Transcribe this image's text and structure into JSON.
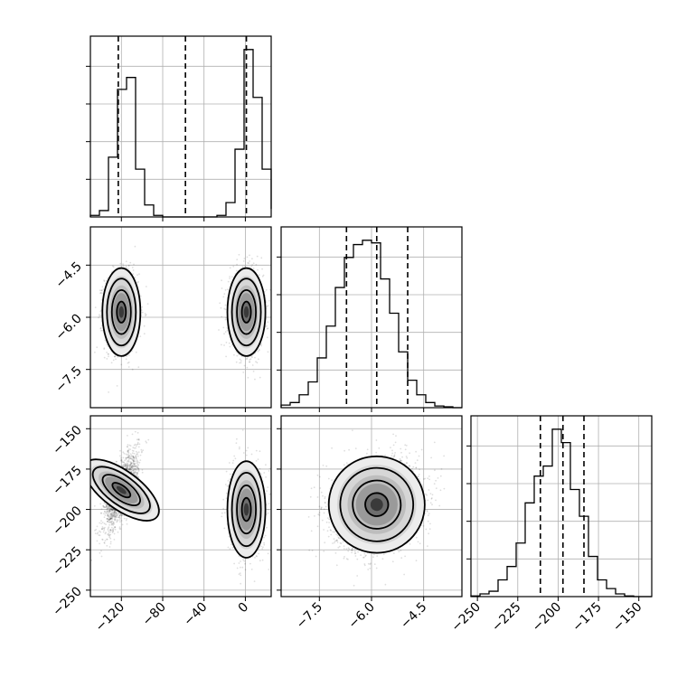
{
  "chart_data": {
    "type": "corner",
    "parameters": [
      {
        "ticks": [
          -120,
          -80,
          -40,
          0
        ],
        "tick_labels": [
          "−120",
          "−80",
          "−40",
          "0"
        ]
      },
      {
        "ticks": [
          -7.5,
          -6.0,
          -4.5
        ],
        "tick_labels": [
          "−7.5",
          "−6.0",
          "−4.5"
        ]
      },
      {
        "ticks": [
          -250,
          -225,
          -200,
          -175,
          -150
        ],
        "tick_labels": [
          "−250",
          "−225",
          "−200",
          "−175",
          "−150"
        ]
      }
    ],
    "ranges": [
      [
        -150,
        25
      ],
      [
        -8.6,
        -3.4
      ],
      [
        -254,
        -142
      ]
    ],
    "grid": true,
    "histograms": [
      {
        "bins": [
          -150,
          -141.25,
          -132.5,
          -123.75,
          -115,
          -106.25,
          -97.5,
          -88.75,
          -80,
          -71.25,
          -62.5,
          -53.75,
          -45,
          -36.25,
          -27.5,
          -18.75,
          -10,
          -1.25,
          7.5,
          16.25,
          25
        ],
        "counts": [
          2,
          8,
          75,
          160,
          175,
          60,
          15,
          2,
          0,
          0,
          0,
          0,
          0,
          0,
          2,
          18,
          85,
          210,
          150,
          60,
          10
        ],
        "quantiles": [
          -123,
          -58,
          1
        ]
      },
      {
        "bins": [
          -8.6,
          -8.34,
          -8.08,
          -7.82,
          -7.56,
          -7.3,
          -7.04,
          -6.78,
          -6.52,
          -6.26,
          -6.0,
          -5.74,
          -5.48,
          -5.22,
          -4.96,
          -4.7,
          -4.44,
          -4.18,
          -3.92,
          -3.66,
          -3.4
        ],
        "counts": [
          3,
          6,
          15,
          30,
          58,
          95,
          140,
          175,
          190,
          195,
          192,
          150,
          110,
          65,
          32,
          15,
          6,
          2,
          1,
          0
        ],
        "quantiles": [
          -6.72,
          -5.85,
          -4.96
        ]
      },
      {
        "bins": [
          -254,
          -248.4,
          -242.8,
          -237.2,
          -231.6,
          -226,
          -220.4,
          -214.8,
          -209.2,
          -203.6,
          -198,
          -192.4,
          -186.8,
          -181.2,
          -175.6,
          -170,
          -164.4,
          -158.8,
          -153.2,
          -147.6,
          -142
        ],
        "counts": [
          1,
          4,
          8,
          25,
          45,
          80,
          140,
          180,
          195,
          250,
          230,
          160,
          120,
          60,
          25,
          12,
          4,
          1,
          0,
          0
        ],
        "quantiles": [
          -211,
          -197,
          -184
        ]
      }
    ],
    "scatter_panels": [
      {
        "x_param": 0,
        "y_param": 1,
        "clusters": [
          {
            "x_center": -120,
            "y_center": -5.85,
            "x_sd": 8,
            "y_sd": 0.55,
            "corr": 0.0,
            "points": 1700
          },
          {
            "x_center": 1,
            "y_center": -5.85,
            "x_sd": 8,
            "y_sd": 0.55,
            "corr": 0.0,
            "points": 1700
          }
        ]
      },
      {
        "x_param": 0,
        "y_param": 2,
        "clusters": [
          {
            "x_center": -120,
            "y_center": -188,
            "x_sd": 8,
            "y_sd": 12,
            "corr": 0.72,
            "points": 1700
          },
          {
            "x_center": 1,
            "y_center": -200,
            "x_sd": 8,
            "y_sd": 13,
            "corr": 0.0,
            "points": 1700
          }
        ]
      },
      {
        "x_param": 1,
        "y_param": 2,
        "clusters": [
          {
            "x_center": -5.85,
            "y_center": -197,
            "x_sd": 0.6,
            "y_sd": 13,
            "corr": 0.2,
            "points": 3400
          }
        ]
      }
    ]
  }
}
